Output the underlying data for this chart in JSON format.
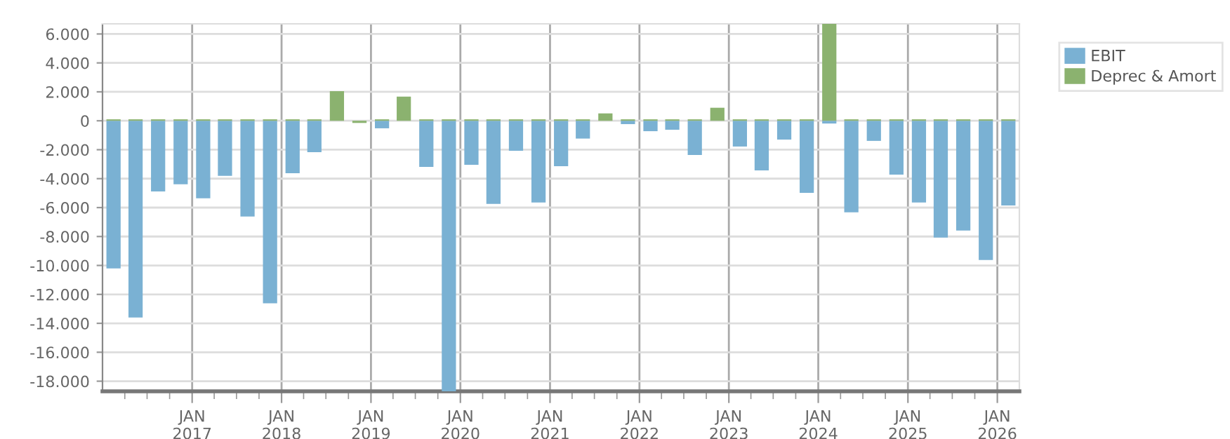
{
  "chart_data": {
    "type": "bar",
    "stacked": true,
    "x": [
      "2016-02-15",
      "2016-05-15",
      "2016-08-15",
      "2016-11-15",
      "2017-02-15",
      "2017-05-15",
      "2017-08-15",
      "2017-11-15",
      "2018-02-15",
      "2018-05-15",
      "2018-08-15",
      "2018-11-15",
      "2019-02-15",
      "2019-05-15",
      "2019-08-15",
      "2019-11-15",
      "2020-02-15",
      "2020-05-15",
      "2020-08-15",
      "2020-11-15",
      "2021-02-15",
      "2021-05-15",
      "2021-08-15",
      "2021-11-15",
      "2022-02-15",
      "2022-05-15",
      "2022-08-15",
      "2022-11-15",
      "2023-02-15",
      "2023-05-15",
      "2023-08-15",
      "2023-11-15",
      "2024-02-15",
      "2024-05-15",
      "2024-08-15",
      "2024-11-15",
      "2025-02-15",
      "2025-05-15",
      "2025-08-15",
      "2025-11-15",
      "2026-02-15"
    ],
    "series": [
      {
        "name": "EBIT",
        "color": "#7ab1d3",
        "values": [
          -10200,
          -13600,
          -4880,
          -4390,
          -5360,
          -3810,
          -6620,
          -12620,
          -3620,
          -2170,
          0,
          0,
          -520,
          0,
          -3190,
          -18700,
          -3040,
          -5750,
          -2070,
          -5650,
          -3140,
          -1230,
          0,
          -230,
          -720,
          -620,
          -2360,
          0,
          -1780,
          -3430,
          -1300,
          -4980,
          -190,
          -6330,
          -1390,
          -3720,
          -5650,
          -8070,
          -7590,
          -9620,
          -5850
        ]
      },
      {
        "name": "Deprec & Amort",
        "color": "#8bb26f",
        "values": [
          100,
          100,
          100,
          100,
          100,
          100,
          100,
          100,
          100,
          100,
          2050,
          -150,
          100,
          1670,
          100,
          100,
          100,
          100,
          100,
          100,
          100,
          100,
          510,
          100,
          100,
          100,
          100,
          900,
          100,
          100,
          100,
          100,
          6700,
          100,
          100,
          100,
          100,
          100,
          100,
          100,
          100
        ]
      }
    ],
    "ylim": [
      -18700,
      6700
    ],
    "yticks": [
      {
        "value": 6000,
        "label": "6.000"
      },
      {
        "value": 4000,
        "label": "4.000"
      },
      {
        "value": 2000,
        "label": "2.000"
      },
      0,
      {
        "value": -2000,
        "label": "-2.000"
      },
      {
        "value": -4000,
        "label": "-4.000"
      },
      {
        "value": -6000,
        "label": "-6.000"
      },
      {
        "value": -8000,
        "label": "-8.000"
      },
      {
        "value": -10000,
        "label": "-10.000"
      },
      {
        "value": -12000,
        "label": "-12.000"
      },
      {
        "value": -14000,
        "label": "-14.000"
      },
      {
        "value": -16000,
        "label": "-16.000"
      },
      {
        "value": -18000,
        "label": "-18.000"
      }
    ],
    "xlim": [
      "2016-01-01",
      "2026-04-01"
    ],
    "xticks": [
      {
        "value": "2016-04-01",
        "label": null
      },
      {
        "value": "2016-07-01",
        "label": null
      },
      {
        "value": "2016-10-01",
        "label": null
      },
      {
        "value": "2017-01-01",
        "label": "JAN\n2017"
      },
      {
        "value": "2017-04-01",
        "label": null
      },
      {
        "value": "2017-07-01",
        "label": null
      },
      {
        "value": "2017-10-01",
        "label": null
      },
      {
        "value": "2018-01-01",
        "label": "JAN\n2018"
      },
      {
        "value": "2018-04-01",
        "label": null
      },
      {
        "value": "2018-07-01",
        "label": null
      },
      {
        "value": "2018-10-01",
        "label": null
      },
      {
        "value": "2019-01-01",
        "label": "JAN\n2019"
      },
      {
        "value": "2019-04-01",
        "label": null
      },
      {
        "value": "2019-07-01",
        "label": null
      },
      {
        "value": "2019-10-01",
        "label": null
      },
      {
        "value": "2020-01-01",
        "label": "JAN\n2020"
      },
      {
        "value": "2020-04-01",
        "label": null
      },
      {
        "value": "2020-07-01",
        "label": null
      },
      {
        "value": "2020-10-01",
        "label": null
      },
      {
        "value": "2021-01-01",
        "label": "JAN\n2021"
      },
      {
        "value": "2021-04-01",
        "label": null
      },
      {
        "value": "2021-07-01",
        "label": null
      },
      {
        "value": "2021-10-01",
        "label": null
      },
      {
        "value": "2022-01-01",
        "label": "JAN\n2022"
      },
      {
        "value": "2022-04-01",
        "label": null
      },
      {
        "value": "2022-07-01",
        "label": null
      },
      {
        "value": "2022-10-01",
        "label": null
      },
      {
        "value": "2023-01-01",
        "label": "JAN\n2023"
      },
      {
        "value": "2023-04-01",
        "label": null
      },
      {
        "value": "2023-07-01",
        "label": null
      },
      {
        "value": "2023-10-01",
        "label": null
      },
      {
        "value": "2024-01-01",
        "label": "JAN\n2024"
      },
      {
        "value": "2024-04-01",
        "label": null
      },
      {
        "value": "2024-07-01",
        "label": null
      },
      {
        "value": "2024-10-01",
        "label": null
      },
      {
        "value": "2025-01-01",
        "label": "JAN\n2025"
      },
      {
        "value": "2025-04-01",
        "label": null
      },
      {
        "value": "2025-07-01",
        "label": null
      },
      {
        "value": "2025-10-01",
        "label": null
      },
      {
        "value": "2026-01-01",
        "label": "JAN\n2026"
      }
    ],
    "grid": true,
    "legend": "top right"
  }
}
